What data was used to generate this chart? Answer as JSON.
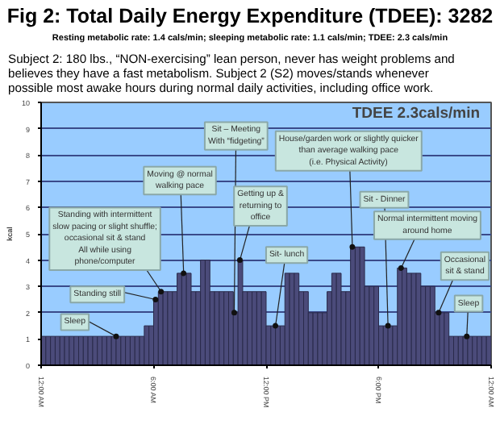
{
  "chart_data": {
    "type": "bar",
    "title": "Fig 2: Total Daily Energy Expenditure (TDEE): 3282",
    "subtitle": "Resting metabolic rate: 1.4 cals/min; sleeping metabolic rate: 1.1 cals/min; TDEE: 2.3 cals/min",
    "ylabel": "kcal",
    "x": [
      0.125,
      0.375,
      0.625,
      0.875,
      1.125,
      1.375,
      1.625,
      1.875,
      2.125,
      2.375,
      2.625,
      2.875,
      3.125,
      3.375,
      3.625,
      3.875,
      4.125,
      4.375,
      4.625,
      4.875,
      5.125,
      5.375,
      5.625,
      5.875,
      6.125,
      6.375,
      6.625,
      6.875,
      7.125,
      7.375,
      7.625,
      7.875,
      8.125,
      8.375,
      8.625,
      8.875,
      9.125,
      9.375,
      9.625,
      9.875,
      10.125,
      10.375,
      10.625,
      10.875,
      11.125,
      11.375,
      11.625,
      11.875,
      12.125,
      12.375,
      12.625,
      12.875,
      13.125,
      13.375,
      13.625,
      13.875,
      14.125,
      14.375,
      14.625,
      14.875,
      15.125,
      15.375,
      15.625,
      15.875,
      16.125,
      16.375,
      16.625,
      16.875,
      17.125,
      17.375,
      17.625,
      17.875,
      18.125,
      18.375,
      18.625,
      18.875,
      19.125,
      19.375,
      19.625,
      19.875,
      20.125,
      20.375,
      20.625,
      20.875,
      21.125,
      21.375,
      21.625,
      21.875,
      22.125,
      22.375,
      22.625,
      22.875,
      23.125,
      23.375,
      23.625,
      23.875
    ],
    "values": [
      1.1,
      1.1,
      1.1,
      1.1,
      1.1,
      1.1,
      1.1,
      1.1,
      1.1,
      1.1,
      1.1,
      1.1,
      1.1,
      1.1,
      1.1,
      1.1,
      1.1,
      1.1,
      1.1,
      1.1,
      1.1,
      1.1,
      1.5,
      1.5,
      2.5,
      2.8,
      2.8,
      2.8,
      2.8,
      3.5,
      3.5,
      3.5,
      2.8,
      2.8,
      4.0,
      4.0,
      2.8,
      2.8,
      2.8,
      2.8,
      2.8,
      2.0,
      4.0,
      2.8,
      2.8,
      2.8,
      2.8,
      2.8,
      1.5,
      1.5,
      1.5,
      1.5,
      3.5,
      3.5,
      3.5,
      2.8,
      2.8,
      2.0,
      2.0,
      2.0,
      2.0,
      2.8,
      3.5,
      3.5,
      2.8,
      2.8,
      4.5,
      4.5,
      4.5,
      3.0,
      3.0,
      3.0,
      1.5,
      1.5,
      1.5,
      1.5,
      3.7,
      3.7,
      3.5,
      3.5,
      3.5,
      3.0,
      3.0,
      3.0,
      2.0,
      2.0,
      2.0,
      1.1,
      1.1,
      1.1,
      1.1,
      1.1,
      1.1,
      1.1,
      1.1,
      1.1
    ],
    "color": "#4b4b7a",
    "xlim": [
      0,
      24
    ],
    "xticks": [
      {
        "value": 0,
        "label": "12:00 AM"
      },
      {
        "value": 6,
        "label": "6:00 AM"
      },
      {
        "value": 12,
        "label": "12:00 PM"
      },
      {
        "value": 18,
        "label": "6:00 PM"
      },
      {
        "value": 24,
        "label": "12:00 AM"
      }
    ],
    "ylim": [
      0,
      10
    ],
    "yticks": [
      0,
      1,
      2,
      3,
      4,
      5,
      6,
      7,
      8,
      9,
      10
    ],
    "grid": "y",
    "annotations": [
      "Subject 2: 180 lbs., “NON-exercising” lean person, never has weight problems and\nbelieves they have a fast metabolism.  Subject 2 (S2) moves/stands whenever\npossible most awake hours during normal daily activities, including office work.",
      "TDEE 2.3cals/min",
      {
        "text": "Sleep",
        "x": 4.0,
        "y": 1.1
      },
      {
        "text": "Standing still",
        "x": 6.1,
        "y": 2.5
      },
      {
        "text": "Standing with intermittent\nslow pacing or slight shuffle;\noccasional sit & stand\nAll while using\nphone/computer",
        "x": 6.4,
        "y": 2.8
      },
      {
        "text": "Moving @ normal\nwalking pace",
        "x": 7.6,
        "y": 3.5
      },
      {
        "text": "Sit – Meeting\nWith “fidgeting”",
        "x": 10.3,
        "y": 2.0
      },
      {
        "text": "Getting up &\nreturning to\noffice",
        "x": 10.6,
        "y": 4.0
      },
      {
        "text": "Sit- lunch",
        "x": 12.5,
        "y": 1.5
      },
      {
        "text": "House/garden work or slightly quicker\nthan average walking pace\n(i.e. Physical Activity)",
        "x": 16.6,
        "y": 4.5
      },
      {
        "text": "Sit - Dinner",
        "x": 18.5,
        "y": 1.5
      },
      {
        "text": "Normal intermittent moving\naround home",
        "x": 19.2,
        "y": 3.7
      },
      {
        "text": "Occasional\nsit & stand",
        "x": 21.2,
        "y": 2.0
      },
      {
        "text": "Sleep",
        "x": 22.7,
        "y": 1.1
      }
    ]
  }
}
